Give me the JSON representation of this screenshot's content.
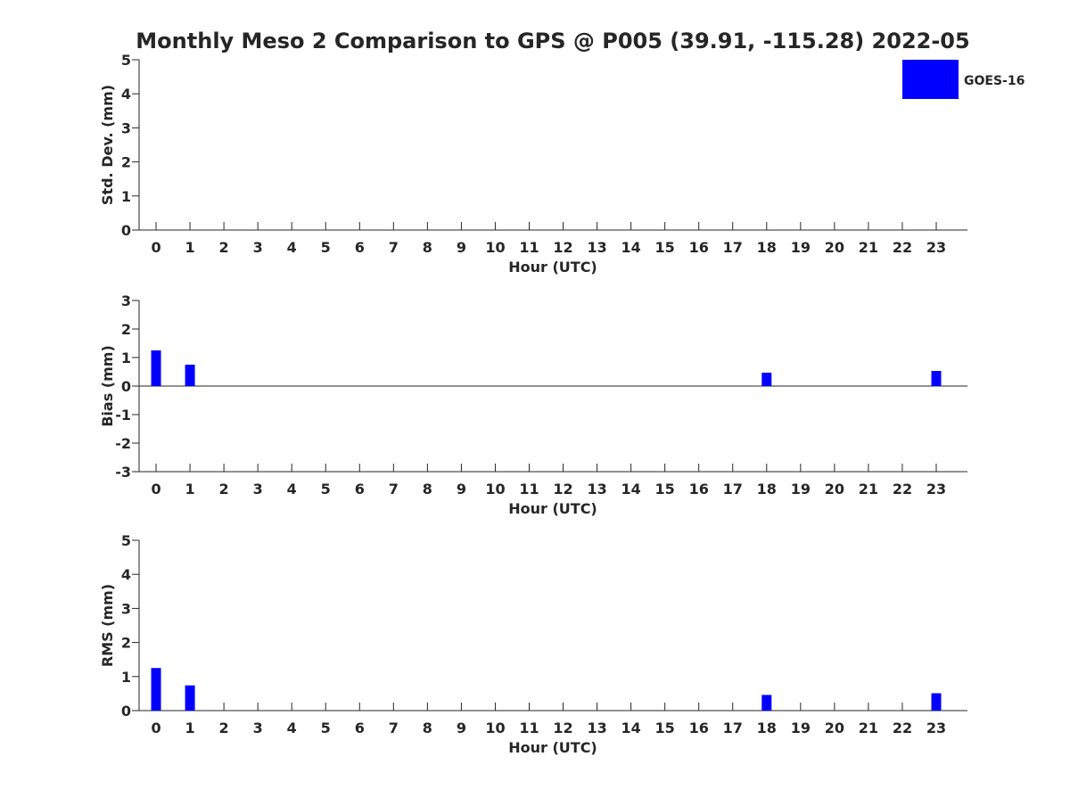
{
  "chart_data": {
    "title": "Monthly Meso 2 Comparison to GPS @ P005 (39.91, -115.28) 2022-05",
    "legend": {
      "label": "GOES-16",
      "color": "#0000ff",
      "placement": "top-right"
    },
    "categories": [
      "0",
      "1",
      "2",
      "3",
      "4",
      "5",
      "6",
      "7",
      "8",
      "9",
      "10",
      "11",
      "12",
      "13",
      "14",
      "15",
      "16",
      "17",
      "18",
      "19",
      "20",
      "21",
      "22",
      "23"
    ],
    "panels": [
      {
        "type": "bar",
        "ylabel": "Std. Dev. (mm)",
        "xlabel": "Hour (UTC)",
        "ylim": [
          0,
          5
        ],
        "yticks": [
          "0",
          "1",
          "2",
          "3",
          "4",
          "5"
        ],
        "values": [
          null,
          null,
          null,
          null,
          null,
          null,
          null,
          null,
          null,
          null,
          null,
          null,
          null,
          null,
          null,
          null,
          null,
          null,
          null,
          null,
          null,
          null,
          null,
          null
        ]
      },
      {
        "type": "bar",
        "ylabel": "Bias (mm)",
        "xlabel": "Hour (UTC)",
        "ylim": [
          -3,
          3
        ],
        "yticks": [
          "-3",
          "-2",
          "-1",
          "0",
          "1",
          "2",
          "3"
        ],
        "zero_line": true,
        "values": [
          1.25,
          0.75,
          null,
          null,
          null,
          null,
          null,
          null,
          null,
          null,
          null,
          null,
          null,
          null,
          null,
          null,
          null,
          null,
          0.47,
          null,
          null,
          null,
          null,
          0.53
        ]
      },
      {
        "type": "bar",
        "ylabel": "RMS (mm)",
        "xlabel": "Hour (UTC)",
        "ylim": [
          0,
          5
        ],
        "yticks": [
          "0",
          "1",
          "2",
          "3",
          "4",
          "5"
        ],
        "values": [
          1.25,
          0.74,
          null,
          null,
          null,
          null,
          null,
          null,
          null,
          null,
          null,
          null,
          null,
          null,
          null,
          null,
          null,
          null,
          0.46,
          null,
          null,
          null,
          null,
          0.51
        ]
      }
    ]
  }
}
